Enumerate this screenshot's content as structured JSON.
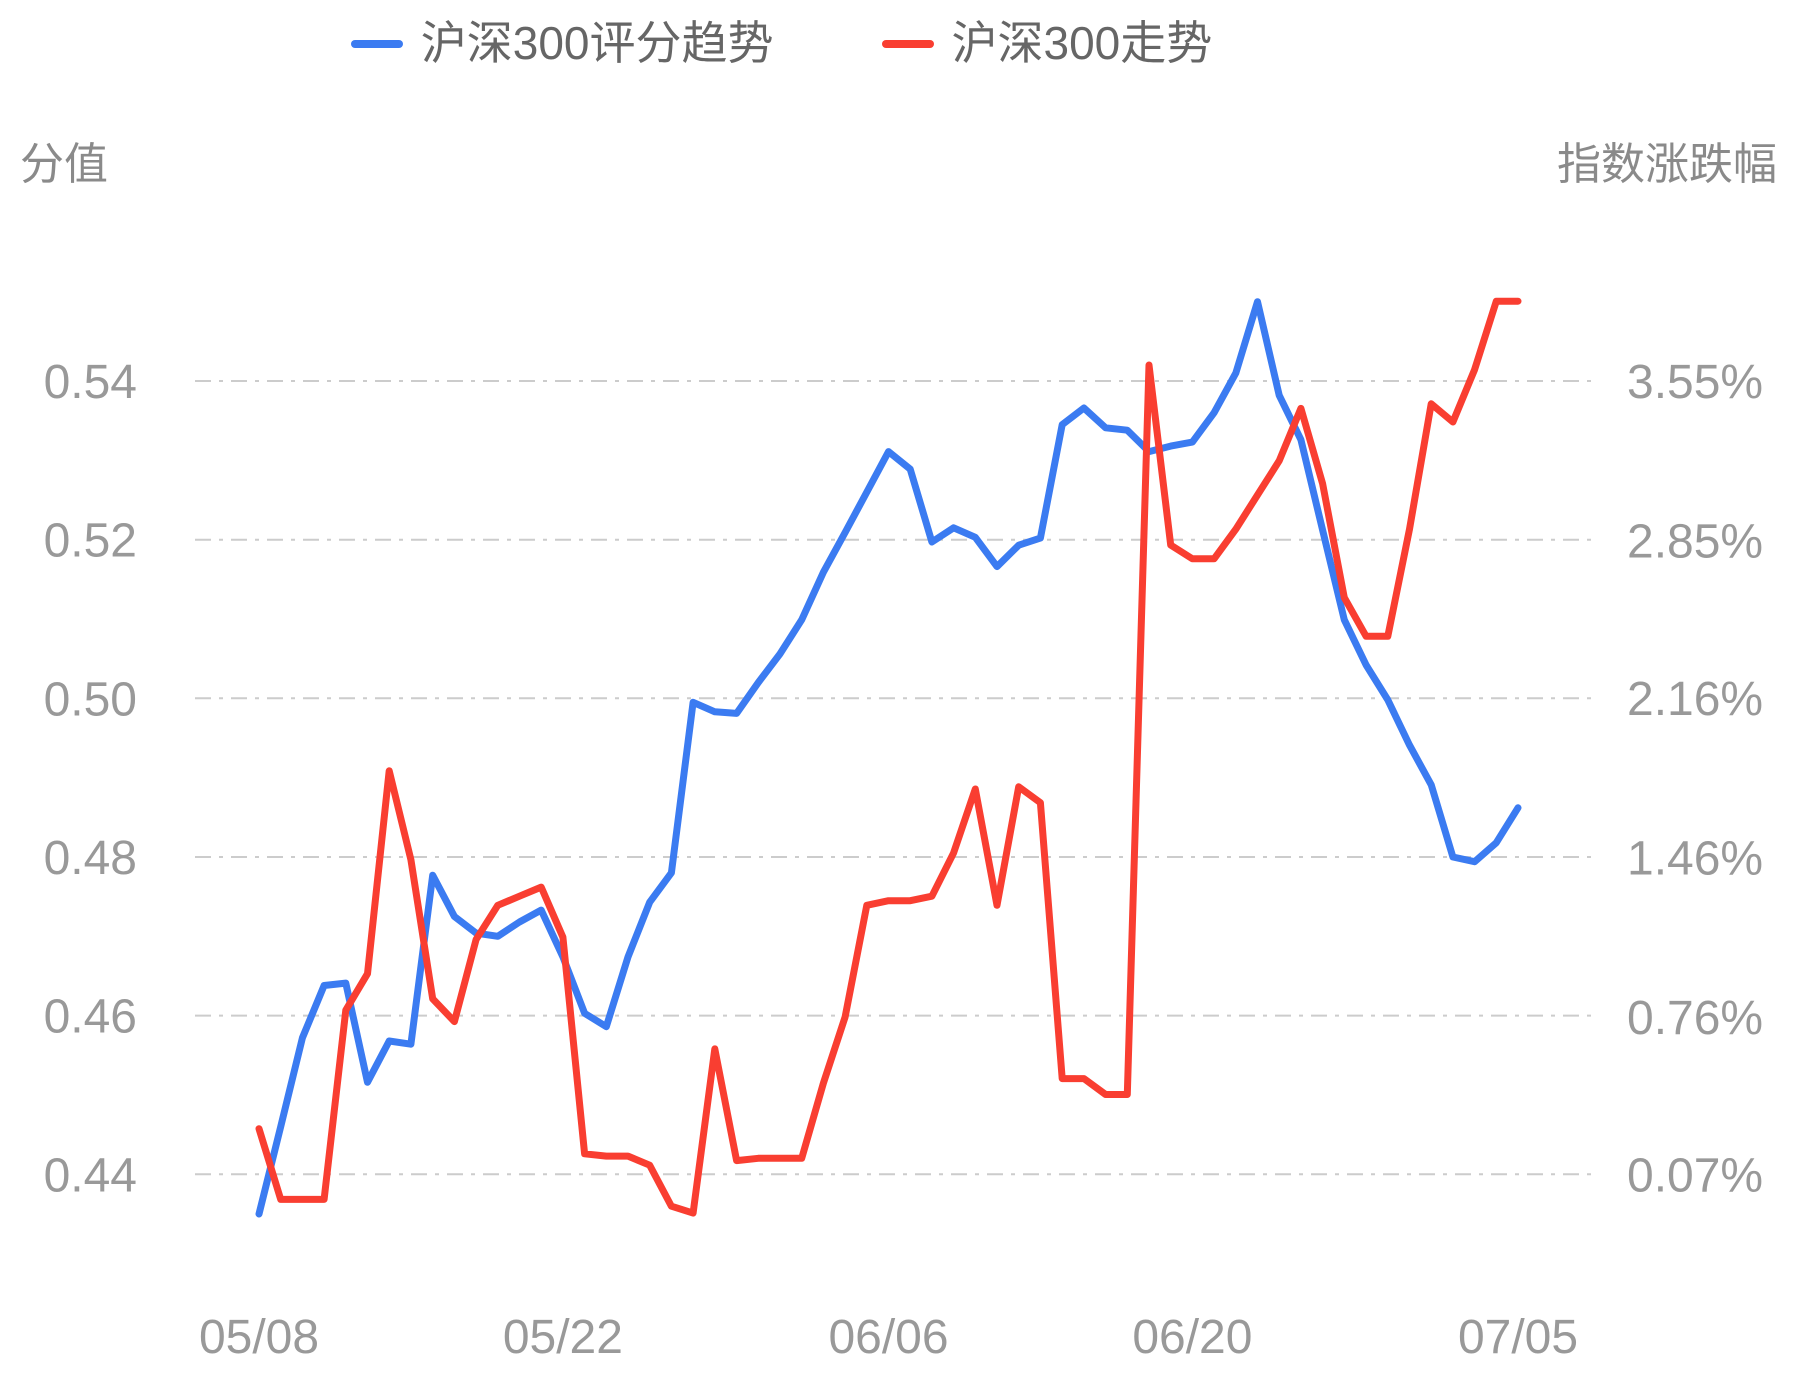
{
  "legend": {
    "items": [
      {
        "label": "沪深300评分趋势",
        "color": "#3b7bf1"
      },
      {
        "label": "沪深300走势",
        "color": "#f93e31"
      }
    ]
  },
  "chart_data": {
    "type": "line",
    "title": "",
    "grid": true,
    "legend_position": "top",
    "x": {
      "count": 59,
      "tick_labels": [
        {
          "day": 0,
          "label": "05/08"
        },
        {
          "day": 14,
          "label": "05/22"
        },
        {
          "day": 29,
          "label": "06/06"
        },
        {
          "day": 43,
          "label": "06/20"
        },
        {
          "day": 58,
          "label": "07/05"
        }
      ]
    },
    "y_left": {
      "title": "分值",
      "tick_labels": [
        "0.44",
        "0.46",
        "0.48",
        "0.50",
        "0.52",
        "0.54"
      ],
      "tick_values": [
        0.44,
        0.46,
        0.48,
        0.5,
        0.52,
        0.54
      ],
      "range": [
        0.44,
        0.54
      ]
    },
    "y_right": {
      "title": "指数涨跌幅",
      "tick_labels": [
        "0.07%",
        "0.76%",
        "1.46%",
        "2.16%",
        "2.85%",
        "3.55%"
      ],
      "tick_values": [
        0.07,
        0.76,
        1.46,
        2.16,
        2.85,
        3.55
      ],
      "range": [
        0.07,
        3.55
      ]
    },
    "series": [
      {
        "name": "沪深300评分趋势",
        "axis": "left",
        "color": "#3b7bf1",
        "values": [
          0.435,
          0.446,
          0.4572,
          0.4638,
          0.4641,
          0.4516,
          0.4568,
          0.4564,
          0.4777,
          0.4725,
          0.4704,
          0.47,
          0.4718,
          0.4733,
          0.4674,
          0.4603,
          0.4586,
          0.4674,
          0.4743,
          0.478,
          0.4995,
          0.4983,
          0.4981,
          0.502,
          0.5056,
          0.5099,
          0.5159,
          0.5209,
          0.526,
          0.5311,
          0.5289,
          0.5197,
          0.5215,
          0.5203,
          0.5166,
          0.5193,
          0.5202,
          0.5345,
          0.5366,
          0.5341,
          0.5338,
          0.5311,
          0.5318,
          0.5323,
          0.536,
          0.541,
          0.55,
          0.5382,
          0.5326,
          0.5212,
          0.5099,
          0.5042,
          0.4998,
          0.4941,
          0.4891,
          0.48,
          0.4794,
          0.4818,
          0.4862
        ]
      },
      {
        "name": "沪深300走势",
        "axis": "right",
        "color": "#f93e31",
        "values": [
          0.27,
          -0.04,
          -0.04,
          -0.04,
          0.79,
          0.95,
          1.84,
          1.45,
          0.84,
          0.74,
          1.1,
          1.25,
          1.29,
          1.33,
          1.11,
          0.16,
          0.15,
          0.15,
          0.11,
          -0.07,
          -0.1,
          0.62,
          0.13,
          0.14,
          0.14,
          0.14,
          0.47,
          0.76,
          1.25,
          1.27,
          1.27,
          1.29,
          1.48,
          1.76,
          1.25,
          1.77,
          1.7,
          0.49,
          0.49,
          0.42,
          0.42,
          3.62,
          2.83,
          2.77,
          2.77,
          2.9,
          3.05,
          3.2,
          3.43,
          3.1,
          2.6,
          2.43,
          2.43,
          2.9,
          3.45,
          3.37,
          3.6,
          3.9,
          3.9
        ]
      }
    ],
    "style": {
      "grid_color": "#cccccc",
      "tick_color": "#999999",
      "axis_title_color": "#8a8a8a",
      "legend_text_color": "#666666"
    }
  }
}
